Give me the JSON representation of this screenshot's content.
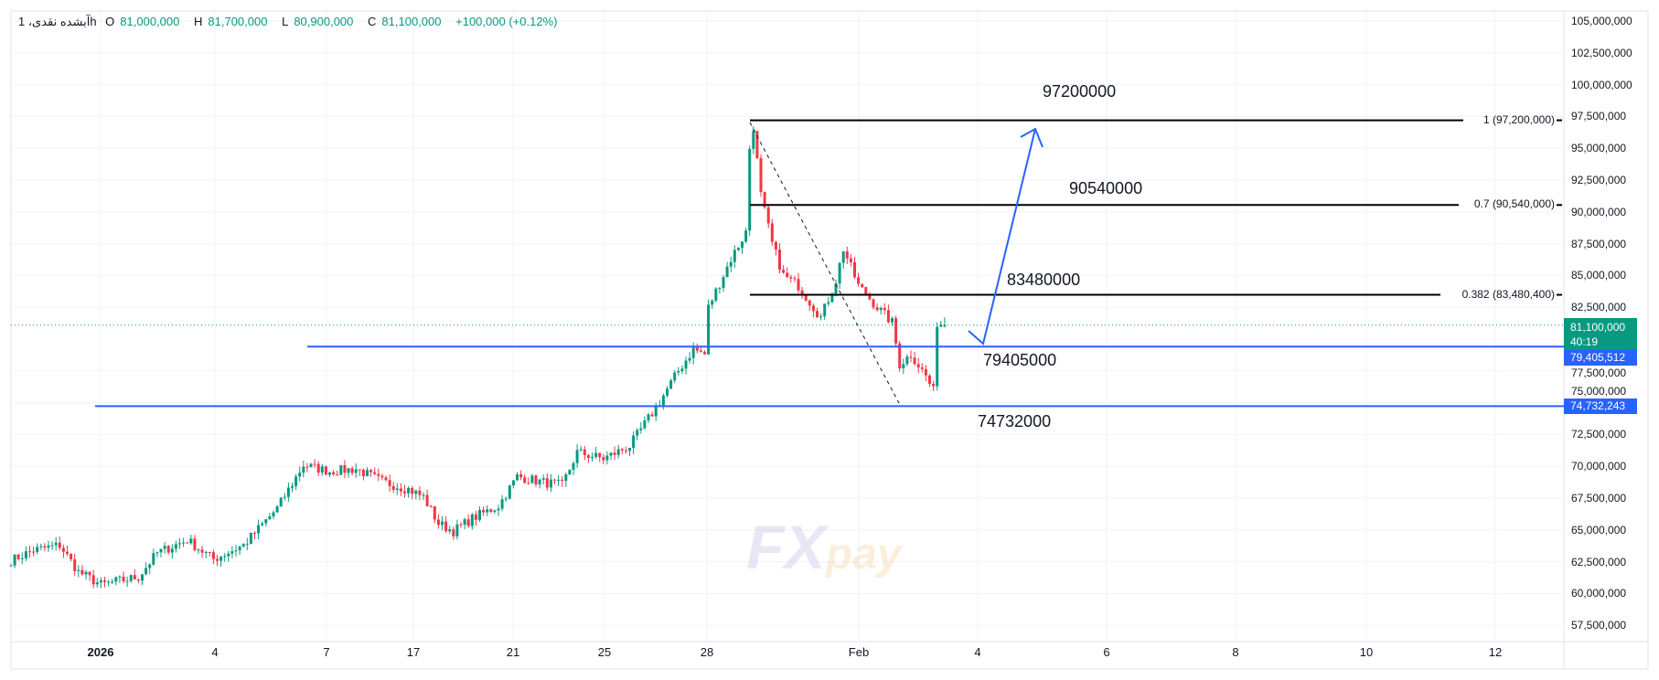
{
  "header": {
    "symbol": "آبشده نقدی، 1h",
    "open_label": "O",
    "open": "81,000,000",
    "high_label": "H",
    "high": "81,700,000",
    "low_label": "L",
    "low": "80,900,000",
    "close_label": "C",
    "close": "81,100,000",
    "change": "+100,000 (+0.12%)"
  },
  "watermark": {
    "brand": "FX",
    "brand2": "pay"
  },
  "chart_data": {
    "type": "candlestick",
    "ylim": [
      56500000,
      106000000
    ],
    "yticks": [
      "105,000,000",
      "102,500,000",
      "100,000,000",
      "97,500,000",
      "95,000,000",
      "92,500,000",
      "90,000,000",
      "87,500,000",
      "85,000,000",
      "82,500,000",
      "77,500,000",
      "75,000,000",
      "72,500,000",
      "70,000,000",
      "67,500,000",
      "65,000,000",
      "62,500,000",
      "60,000,000",
      "57,500,000"
    ],
    "xticks": [
      "2026",
      "4",
      "7",
      "17",
      "21",
      "25",
      "28",
      "Feb",
      "4",
      "6",
      "8",
      "10",
      "12"
    ],
    "price_path_millions": [
      [
        0,
        62.6
      ],
      [
        6,
        63.4
      ],
      [
        13,
        63.8
      ],
      [
        18,
        61.7
      ],
      [
        24,
        60.7
      ],
      [
        34,
        61.3
      ],
      [
        39,
        63.2
      ],
      [
        47,
        64.2
      ],
      [
        54,
        62.7
      ],
      [
        62,
        63.8
      ],
      [
        71,
        66.7
      ],
      [
        78,
        70.1
      ],
      [
        85,
        69.6
      ],
      [
        92,
        69.8
      ],
      [
        99,
        68.8
      ],
      [
        106,
        68.2
      ],
      [
        110,
        67.6
      ],
      [
        114,
        65.5
      ],
      [
        118,
        64.9
      ],
      [
        123,
        65.9
      ],
      [
        130,
        66.9
      ],
      [
        135,
        69.2
      ],
      [
        141,
        68.8
      ],
      [
        147,
        68.5
      ],
      [
        151,
        71.1
      ],
      [
        158,
        70.6
      ],
      [
        165,
        71.6
      ],
      [
        172,
        74.6
      ],
      [
        178,
        77.5
      ],
      [
        182,
        79.2
      ],
      [
        185,
        78.8
      ],
      [
        186,
        82.5
      ],
      [
        192,
        86.3
      ],
      [
        196,
        88.4
      ],
      [
        197,
        95.0
      ],
      [
        198,
        96.7
      ],
      [
        200,
        91.3
      ],
      [
        203,
        87.5
      ],
      [
        206,
        85.0
      ],
      [
        210,
        84.2
      ],
      [
        216,
        81.7
      ],
      [
        220,
        84.6
      ],
      [
        222,
        87.1
      ],
      [
        226,
        84.2
      ],
      [
        231,
        82.5
      ],
      [
        235,
        81.3
      ],
      [
        237,
        78.0
      ],
      [
        240,
        78.8
      ],
      [
        244,
        77.1
      ],
      [
        246,
        75.9
      ],
      [
        247,
        81.3
      ],
      [
        249,
        81.1
      ]
    ],
    "colors": {
      "up": "#089981",
      "down": "#f23645",
      "level": "#2962ff",
      "fib": "#000000",
      "arrow": "#2962ff"
    },
    "fib_levels": [
      {
        "label": "1 (97,200,000)",
        "value": 97200000
      },
      {
        "label": "0.7 (90,540,000)",
        "value": 90540000
      },
      {
        "label": "0.382 (83,480,400)",
        "value": 83480400
      }
    ],
    "annotations": [
      "97200000",
      "90540000",
      "83480000",
      "79405000",
      "74732000"
    ],
    "horizontal_levels": [
      {
        "value": 79405512,
        "label": "79,405,512"
      },
      {
        "value": 74732243,
        "label": "74,732,243"
      }
    ],
    "last_price": {
      "label": "81,100,000",
      "countdown": "40:19",
      "color": "#089981"
    }
  }
}
